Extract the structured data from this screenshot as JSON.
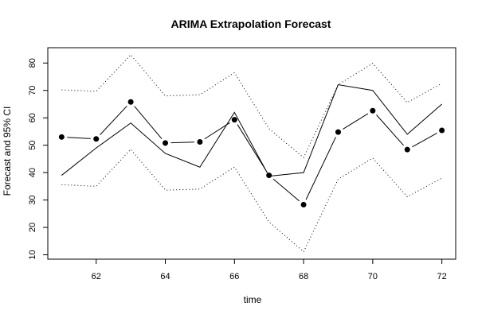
{
  "chart_data": {
    "type": "line",
    "title": "ARIMA Extrapolation Forecast",
    "xlabel": "time",
    "ylabel": "Forecast and 95% CI",
    "xlim": [
      60.6,
      72.4
    ],
    "ylim": [
      8.4,
      85.6
    ],
    "x_ticks": [
      62,
      64,
      66,
      68,
      70,
      72
    ],
    "y_ticks": [
      10,
      20,
      30,
      40,
      50,
      60,
      70,
      80
    ],
    "x": [
      61,
      62,
      63,
      64,
      65,
      66,
      67,
      68,
      69,
      70,
      71,
      72
    ],
    "series": [
      {
        "values": [
          53,
          52.3,
          65.8,
          50.8,
          51.2,
          59.3,
          39,
          28.3,
          54.8,
          62.6,
          48.4,
          55.4
        ]
      },
      {
        "values": [
          39,
          49,
          58.1,
          47,
          42,
          62,
          38.7,
          40,
          72.1,
          70,
          54,
          65
        ]
      },
      {
        "values": [
          70.2,
          69.7,
          83,
          68,
          68.4,
          76.5,
          56,
          45.5,
          72.1,
          79.9,
          65.6,
          72.6
        ]
      },
      {
        "values": [
          35.6,
          35,
          48.5,
          33.6,
          34,
          42,
          22,
          11.1,
          37.6,
          45.3,
          31.2,
          38
        ]
      }
    ]
  }
}
